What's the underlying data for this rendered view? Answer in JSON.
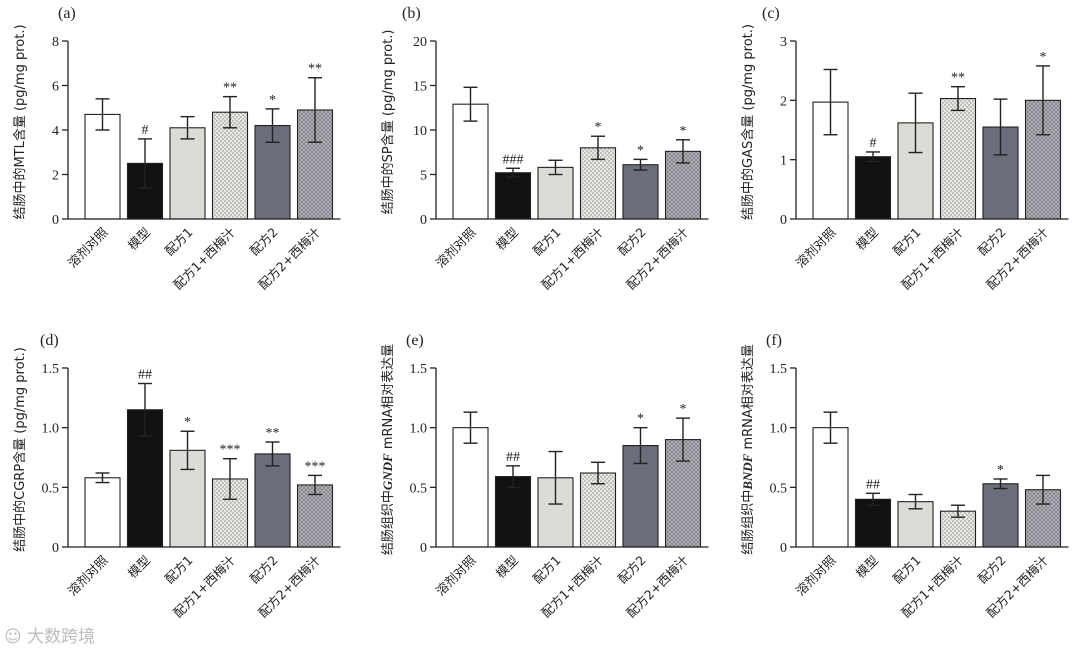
{
  "watermark": "大数跨境",
  "fills": {
    "white": "#ffffff",
    "black": "#111111",
    "light": "#dcdcd6",
    "dotted": "#dddddd",
    "slate": "#6a6e7a",
    "grid": "#a9a9ae"
  },
  "chart_data": [
    {
      "panel": "(a)",
      "type": "bar",
      "ylabel": "结肠中的MTL含量 (pg/mg prot.)",
      "ylim": [
        0,
        8
      ],
      "yticks": [
        "0",
        "2",
        "4",
        "6",
        "8"
      ],
      "categories": [
        "溶剂对照",
        "模型",
        "配方1",
        "配方1+西梅汁",
        "配方2",
        "配方2+西梅汁"
      ],
      "values": [
        4.7,
        2.5,
        4.1,
        4.8,
        4.2,
        4.9
      ],
      "errors": [
        0.7,
        1.1,
        0.5,
        0.7,
        0.75,
        1.45
      ],
      "sig": [
        "",
        "#",
        "",
        "**",
        "*",
        "**"
      ]
    },
    {
      "panel": "(b)",
      "type": "bar",
      "ylabel": "结肠中的SP含量 (pg/mg prot.)",
      "ylim": [
        0,
        20
      ],
      "yticks": [
        "0",
        "5",
        "10",
        "15",
        "20"
      ],
      "categories": [
        "溶剂对照",
        "模型",
        "配方1",
        "配方1+西梅汁",
        "配方2",
        "配方2+西梅汁"
      ],
      "values": [
        12.9,
        5.2,
        5.8,
        8.0,
        6.1,
        7.6
      ],
      "errors": [
        1.9,
        0.5,
        0.8,
        1.3,
        0.6,
        1.3
      ],
      "sig": [
        "",
        "###",
        "",
        "*",
        "*",
        "*"
      ]
    },
    {
      "panel": "(c)",
      "type": "bar",
      "ylabel": "结肠中的GAS含量 (pg/mg prot.)",
      "ylim": [
        0,
        3
      ],
      "yticks": [
        "0",
        "1",
        "2",
        "3"
      ],
      "categories": [
        "溶剂对照",
        "模型",
        "配方1",
        "配方1+西梅汁",
        "配方2",
        "配方2+西梅汁"
      ],
      "values": [
        1.97,
        1.05,
        1.62,
        2.03,
        1.55,
        2.0
      ],
      "errors": [
        0.55,
        0.08,
        0.5,
        0.2,
        0.47,
        0.58
      ],
      "sig": [
        "",
        "#",
        "",
        "**",
        "",
        "*"
      ]
    },
    {
      "panel": "(d)",
      "type": "bar",
      "ylabel": "结肠中的CGRP含量 (pg/mg prot.)",
      "ylim": [
        0,
        1.5
      ],
      "yticks": [
        "0",
        "0.5",
        "1.0",
        "1.5"
      ],
      "categories": [
        "溶剂对照",
        "模型",
        "配方1",
        "配方1+西梅汁",
        "配方2",
        "配方2+西梅汁"
      ],
      "values": [
        0.58,
        1.15,
        0.81,
        0.57,
        0.78,
        0.52
      ],
      "errors": [
        0.04,
        0.22,
        0.16,
        0.17,
        0.1,
        0.08
      ],
      "sig": [
        "",
        "##",
        "*",
        "***",
        "**",
        "***"
      ]
    },
    {
      "panel": "(e)",
      "type": "bar",
      "ylabel_prefix": "结肠组织中",
      "ylabel_gene": "GNDF",
      "ylabel_suffix": " mRNA相对表达量",
      "ylim": [
        0,
        1.5
      ],
      "yticks": [
        "0",
        "0.5",
        "1.0",
        "1.5"
      ],
      "categories": [
        "溶剂对照",
        "模型",
        "配方1",
        "配方1+西梅汁",
        "配方2",
        "配方2+西梅汁"
      ],
      "values": [
        1.0,
        0.59,
        0.58,
        0.62,
        0.85,
        0.9
      ],
      "errors": [
        0.13,
        0.09,
        0.22,
        0.09,
        0.15,
        0.18
      ],
      "sig": [
        "",
        "##",
        "",
        "",
        "*",
        "*"
      ]
    },
    {
      "panel": "(f)",
      "type": "bar",
      "ylabel_prefix": "结肠组织中",
      "ylabel_gene": "BNDF",
      "ylabel_suffix": " mRNA相对表达量",
      "ylim": [
        0,
        1.5
      ],
      "yticks": [
        "0",
        "0.5",
        "1.0",
        "1.5"
      ],
      "categories": [
        "溶剂对照",
        "模型",
        "配方1",
        "配方1+西梅汁",
        "配方2",
        "配方2+西梅汁"
      ],
      "values": [
        1.0,
        0.4,
        0.38,
        0.3,
        0.53,
        0.48
      ],
      "errors": [
        0.13,
        0.05,
        0.06,
        0.05,
        0.04,
        0.12
      ],
      "sig": [
        "",
        "##",
        "",
        "",
        "*",
        ""
      ]
    }
  ]
}
